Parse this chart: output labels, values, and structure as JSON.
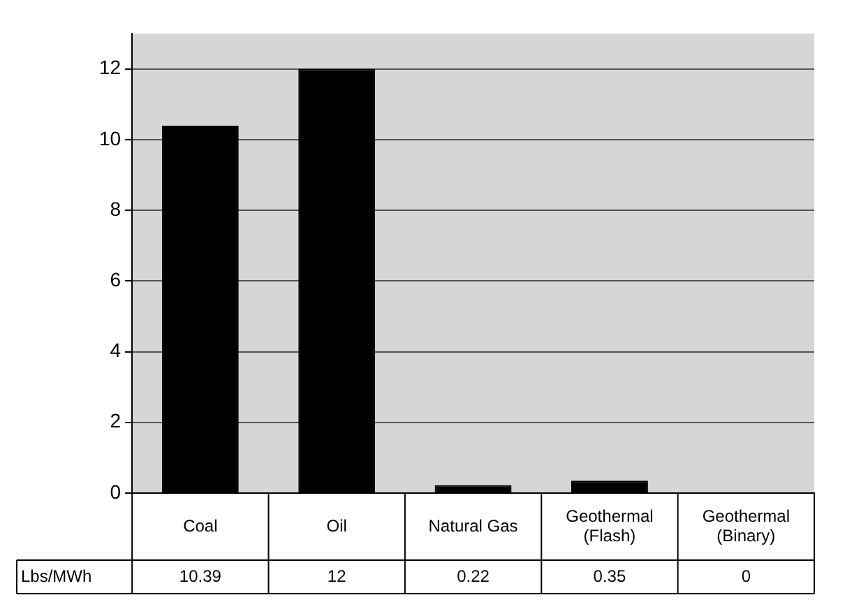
{
  "chart_data": {
    "type": "bar",
    "categories": [
      "Coal",
      "Oil",
      "Natural Gas",
      "Geothermal (Flash)",
      "Geothermal (Binary)"
    ],
    "series": [
      {
        "name": "Lbs/MWh",
        "color": "#000000",
        "values": [
          10.39,
          12,
          0.22,
          0.35,
          0
        ]
      }
    ],
    "ylim": [
      0,
      13
    ],
    "yticks": [
      0,
      2,
      4,
      6,
      8,
      10,
      12
    ],
    "grid": "y",
    "legend": "bottom left",
    "data_labels": true
  }
}
